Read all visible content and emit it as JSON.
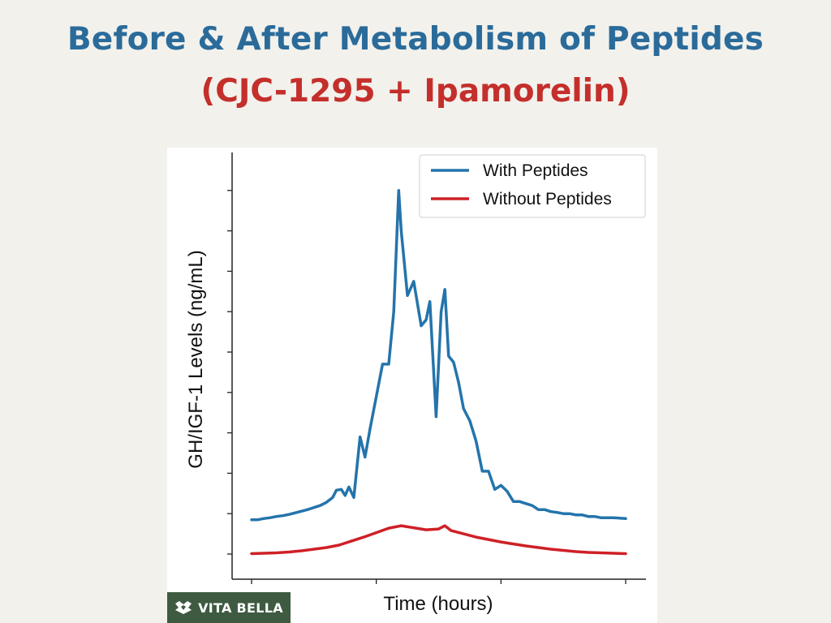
{
  "header": {
    "title": "Before & After Metabolism of Peptides",
    "subtitle": "(CJC-1295 + Ipamorelin)"
  },
  "colors": {
    "title": "#2a6b9a",
    "subtitle": "#c42f2b",
    "with_series": "#2474ab",
    "without_series": "#cf2027",
    "brand_bg": "#3e5b41"
  },
  "brand": {
    "label": "VITA BELLA",
    "icon": "vita-bella-logo-icon"
  },
  "chart_data": {
    "type": "line",
    "title": "",
    "xlabel": "Time (hours)",
    "ylabel": "GH/IGF-1 Levels (ng/mL)",
    "xlim": [
      0,
      30
    ],
    "ylim": [
      0,
      100
    ],
    "x_ticks": [
      0,
      10,
      20,
      30
    ],
    "y_ticks": [
      0,
      10,
      20,
      30,
      40,
      50,
      60,
      70,
      80,
      90
    ],
    "tick_labels_shown": false,
    "grid": false,
    "legend_position": "top-right",
    "series": [
      {
        "name": "With Peptides",
        "color": "#2474ab",
        "x": [
          0,
          0.5,
          1,
          1.5,
          2,
          2.5,
          3,
          3.5,
          4,
          4.5,
          5,
          5.5,
          6,
          6.5,
          6.8,
          7.2,
          7.5,
          7.8,
          8.2,
          8.7,
          9.1,
          9.5,
          10,
          10.5,
          11,
          11.4,
          11.8,
          12,
          12.5,
          13,
          13.3,
          13.6,
          14.0,
          14.3,
          14.8,
          15.2,
          15.5,
          15.8,
          16.2,
          16.6,
          17.0,
          17.5,
          18,
          18.5,
          19,
          19.5,
          20,
          20.5,
          21,
          21.5,
          22,
          22.5,
          23,
          23.5,
          24,
          24.5,
          25,
          25.5,
          26,
          26.5,
          27,
          27.5,
          28,
          28.5,
          29,
          29.5,
          30
        ],
        "y": [
          8.5,
          8.5,
          8.8,
          9.0,
          9.3,
          9.5,
          9.8,
          10.2,
          10.6,
          11.0,
          11.5,
          12.0,
          12.8,
          14.0,
          15.8,
          16.0,
          14.5,
          16.6,
          14.0,
          29.0,
          24.0,
          31.0,
          39.0,
          47.0,
          47.0,
          60.0,
          90.0,
          80.0,
          64.0,
          67.5,
          62.0,
          56.5,
          58.0,
          62.5,
          34.0,
          60.0,
          65.5,
          49.0,
          47.5,
          42.5,
          36.0,
          33.0,
          28.0,
          20.5,
          20.5,
          16.0,
          17.0,
          15.5,
          13.0,
          13.0,
          12.5,
          12.0,
          11.0,
          11.0,
          10.5,
          10.3,
          10.0,
          10.0,
          9.7,
          9.7,
          9.3,
          9.3,
          9.0,
          9.0,
          9.0,
          8.9,
          8.8
        ]
      },
      {
        "name": "Without Peptides",
        "color": "#cf2027",
        "x": [
          0,
          1,
          2,
          3,
          4,
          5,
          6,
          7,
          8,
          9,
          10,
          11,
          12,
          13,
          14,
          15,
          15.5,
          16,
          17,
          18,
          19,
          20,
          21,
          22,
          23,
          24,
          25,
          26,
          27,
          28,
          29,
          30
        ],
        "y": [
          0.1,
          0.2,
          0.3,
          0.5,
          0.8,
          1.2,
          1.6,
          2.2,
          3.2,
          4.2,
          5.3,
          6.4,
          7.0,
          6.5,
          6.0,
          6.2,
          7.0,
          5.8,
          5.0,
          4.2,
          3.6,
          3.0,
          2.5,
          2.0,
          1.6,
          1.2,
          0.9,
          0.6,
          0.4,
          0.3,
          0.2,
          0.1
        ]
      }
    ]
  }
}
